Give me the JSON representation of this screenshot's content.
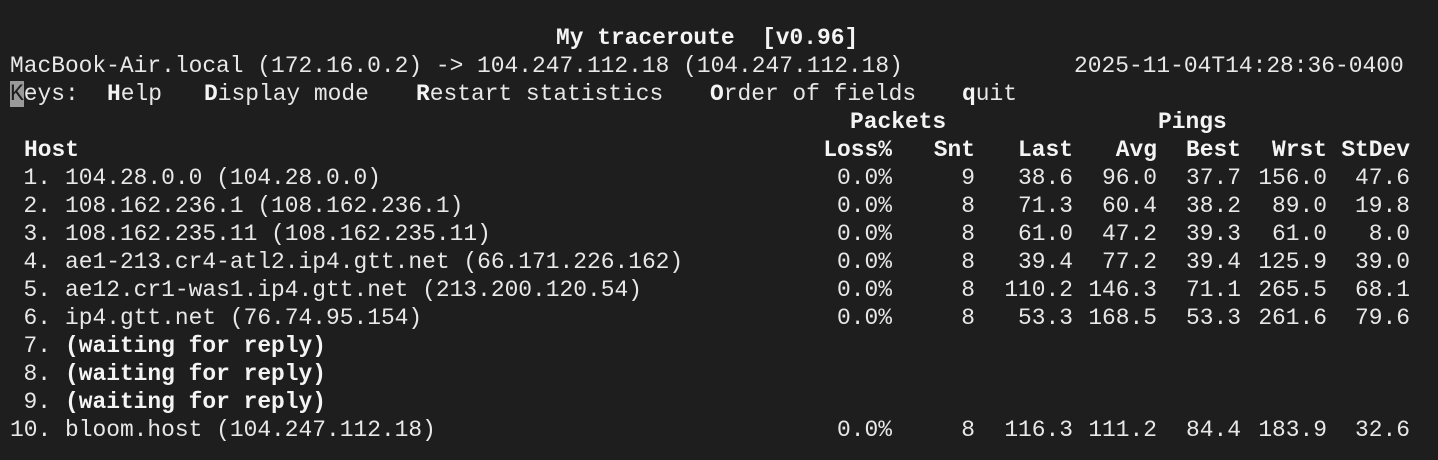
{
  "title": "My traceroute  [v0.96]",
  "route": "MacBook-Air.local (172.16.0.2) -> 104.247.112.18 (104.247.112.18)",
  "timestamp": "2025-11-04T14:28:36-0400",
  "keys": {
    "label_first": "K",
    "label_rest": "eys:",
    "items": [
      {
        "key": "H",
        "rest": "elp"
      },
      {
        "key": "D",
        "rest": "isplay mode"
      },
      {
        "key": "R",
        "rest": "estart statistics"
      },
      {
        "key": "O",
        "rest": "rder of fields"
      },
      {
        "key": "q",
        "rest": "uit"
      }
    ]
  },
  "groups": {
    "packets": "Packets",
    "pings": "Pings"
  },
  "columns": {
    "host": "Host",
    "loss": "Loss%",
    "snt": "Snt",
    "last": "Last",
    "avg": "Avg",
    "best": "Best",
    "wrst": "Wrst",
    "stdev": "StDev"
  },
  "hops": [
    {
      "n": "1.",
      "host": "104.28.0.0 (104.28.0.0)",
      "loss": "0.0%",
      "snt": "9",
      "last": "38.6",
      "avg": "96.0",
      "best": "37.7",
      "wrst": "156.0",
      "stdev": "47.6"
    },
    {
      "n": "2.",
      "host": "108.162.236.1 (108.162.236.1)",
      "loss": "0.0%",
      "snt": "8",
      "last": "71.3",
      "avg": "60.4",
      "best": "38.2",
      "wrst": "89.0",
      "stdev": "19.8"
    },
    {
      "n": "3.",
      "host": "108.162.235.11 (108.162.235.11)",
      "loss": "0.0%",
      "snt": "8",
      "last": "61.0",
      "avg": "47.2",
      "best": "39.3",
      "wrst": "61.0",
      "stdev": "8.0"
    },
    {
      "n": "4.",
      "host": "ae1-213.cr4-atl2.ip4.gtt.net (66.171.226.162)",
      "loss": "0.0%",
      "snt": "8",
      "last": "39.4",
      "avg": "77.2",
      "best": "39.4",
      "wrst": "125.9",
      "stdev": "39.0"
    },
    {
      "n": "5.",
      "host": "ae12.cr1-was1.ip4.gtt.net (213.200.120.54)",
      "loss": "0.0%",
      "snt": "8",
      "last": "110.2",
      "avg": "146.3",
      "best": "71.1",
      "wrst": "265.5",
      "stdev": "68.1"
    },
    {
      "n": "6.",
      "host": "ip4.gtt.net (76.74.95.154)",
      "loss": "0.0%",
      "snt": "8",
      "last": "53.3",
      "avg": "168.5",
      "best": "53.3",
      "wrst": "261.6",
      "stdev": "79.6"
    },
    {
      "n": "7.",
      "host": "(waiting for reply)",
      "waiting": true
    },
    {
      "n": "8.",
      "host": "(waiting for reply)",
      "waiting": true
    },
    {
      "n": "9.",
      "host": "(waiting for reply)",
      "waiting": true
    },
    {
      "n": "10.",
      "host": "bloom.host (104.247.112.18)",
      "loss": "0.0%",
      "snt": "8",
      "last": "116.3",
      "avg": "111.2",
      "best": "84.4",
      "wrst": "183.9",
      "stdev": "32.6"
    }
  ],
  "colors": {
    "background": "#1e1e1e",
    "text": "#e8e8e8",
    "cursor": "#9a9a9a"
  }
}
